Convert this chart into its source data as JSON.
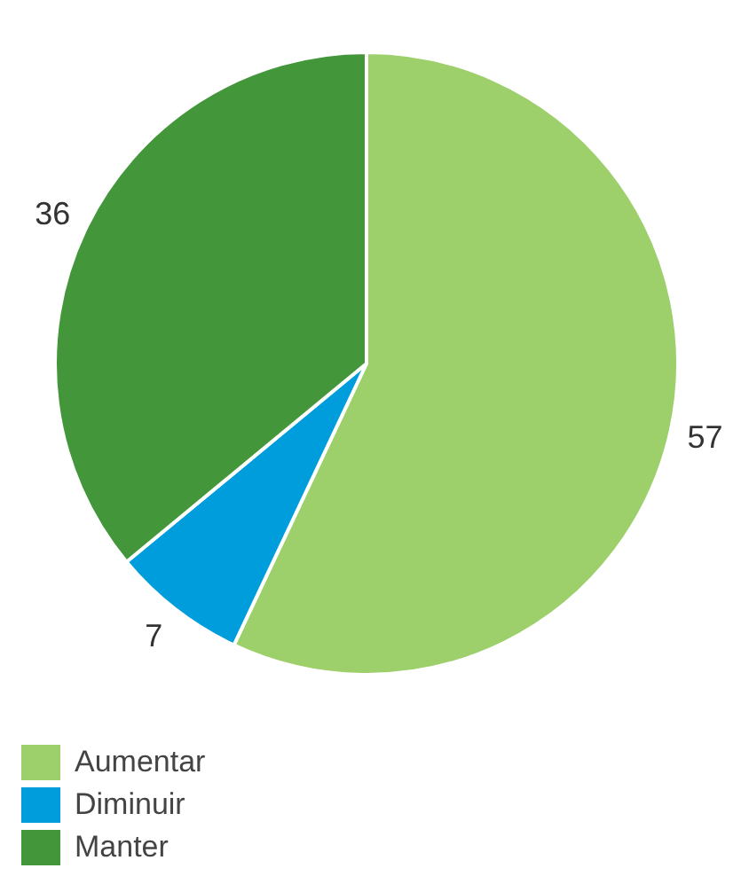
{
  "chart_data": {
    "type": "pie",
    "categories": [
      "Aumentar",
      "Diminuir",
      "Manter"
    ],
    "values": [
      57,
      7,
      36
    ],
    "colors": [
      "#9dcf6b",
      "#009ddc",
      "#43973a"
    ],
    "data_labels": true,
    "legend": "bottom left"
  }
}
